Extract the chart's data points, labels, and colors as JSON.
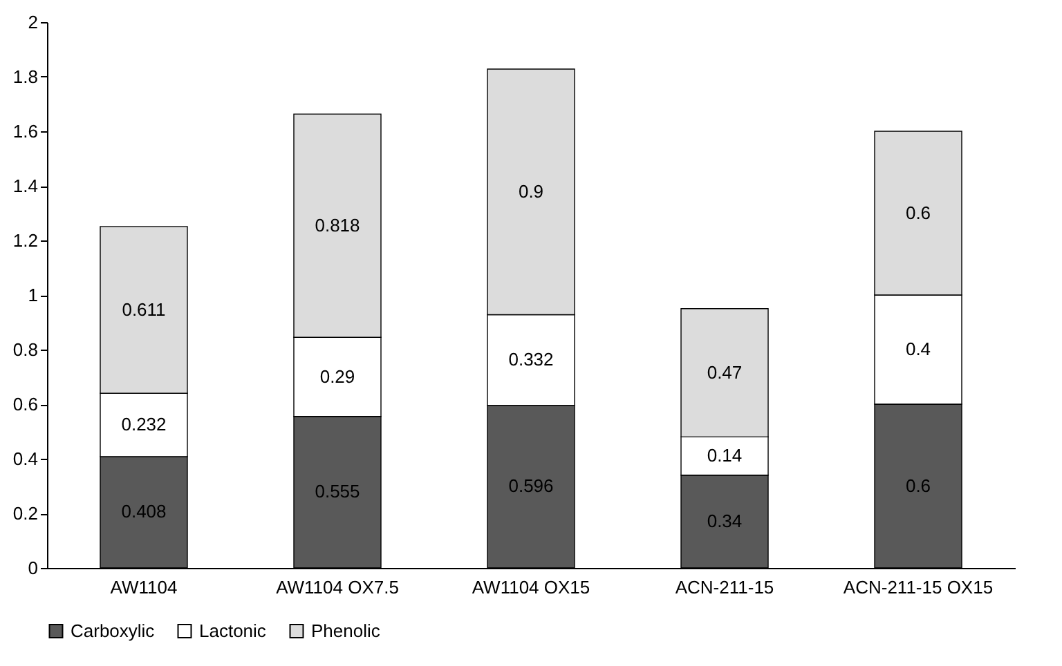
{
  "chart_data": {
    "type": "bar",
    "stacked": true,
    "categories": [
      "AW1104",
      "AW1104 OX7.5",
      "AW1104 OX15",
      "ACN-211-15",
      "ACN-211-15 OX15"
    ],
    "series": [
      {
        "name": "Carboxylic",
        "color": "#595959",
        "values": [
          0.408,
          0.555,
          0.596,
          0.34,
          0.6
        ]
      },
      {
        "name": "Lactonic",
        "color": "#ffffff",
        "values": [
          0.232,
          0.29,
          0.332,
          0.14,
          0.4
        ]
      },
      {
        "name": "Phenolic",
        "color": "#dcdcdc",
        "values": [
          0.611,
          0.818,
          0.9,
          0.47,
          0.6
        ]
      }
    ],
    "ylim": [
      0,
      2
    ],
    "yticks": [
      0,
      0.2,
      0.4,
      0.6,
      0.8,
      1,
      1.2,
      1.4,
      1.6,
      1.8,
      2
    ],
    "grid": false,
    "legend": "bottom",
    "data_labels": true
  }
}
